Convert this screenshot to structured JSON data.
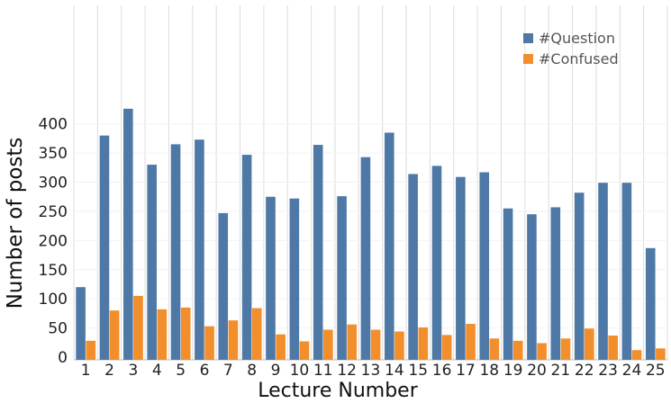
{
  "chart_data": {
    "type": "bar",
    "title": "",
    "xlabel": "Lecture Number",
    "ylabel": "Number of posts",
    "categories": [
      "1",
      "2",
      "3",
      "4",
      "5",
      "6",
      "7",
      "8",
      "9",
      "10",
      "11",
      "12",
      "13",
      "14",
      "15",
      "16",
      "17",
      "18",
      "19",
      "20",
      "21",
      "22",
      "23",
      "24",
      "25"
    ],
    "series": [
      {
        "name": "#Question",
        "color": "#4e79a7",
        "values": [
          120,
          380,
          426,
          330,
          365,
          373,
          247,
          347,
          275,
          272,
          364,
          276,
          343,
          385,
          314,
          328,
          309,
          317,
          255,
          245,
          257,
          282,
          299,
          299,
          187
        ]
      },
      {
        "name": "#Confused",
        "color": "#f28e2b",
        "values": [
          28,
          80,
          105,
          82,
          85,
          53,
          63,
          84,
          39,
          27,
          47,
          56,
          47,
          44,
          51,
          38,
          57,
          32,
          28,
          24,
          32,
          49,
          37,
          12,
          15
        ]
      }
    ],
    "ylim": [
      0,
      450
    ],
    "yticks": [
      0,
      50,
      100,
      150,
      200,
      250,
      300,
      350,
      400
    ],
    "grid": true,
    "legend_position": "top-right"
  }
}
